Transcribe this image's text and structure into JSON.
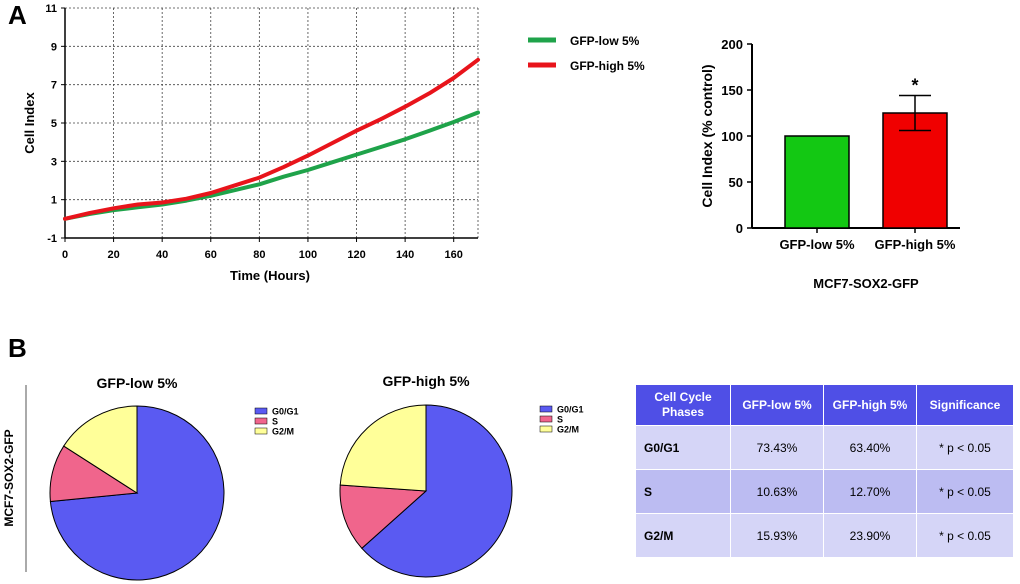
{
  "panels": {
    "a": "A",
    "b": "B"
  },
  "chart_data": [
    {
      "type": "line",
      "xlabel": "Time (Hours)",
      "ylabel": "Cell Index",
      "xlim": [
        0,
        170
      ],
      "ylim": [
        -1,
        11
      ],
      "xticks": [
        "0",
        "20",
        "40",
        "60",
        "80",
        "100",
        "120",
        "140",
        "160"
      ],
      "yticks": [
        "-1",
        "1",
        "3",
        "5",
        "7",
        "9",
        "11"
      ],
      "grid": true,
      "legend_position": "top-right, outside plot",
      "series": [
        {
          "name": "GFP-low 5%",
          "color": "#1fa34a",
          "x": [
            0,
            10,
            20,
            30,
            40,
            50,
            60,
            70,
            80,
            90,
            100,
            110,
            120,
            130,
            140,
            150,
            160,
            170
          ],
          "y": [
            0.0,
            0.25,
            0.45,
            0.6,
            0.75,
            0.95,
            1.2,
            1.5,
            1.8,
            2.2,
            2.55,
            2.95,
            3.35,
            3.75,
            4.15,
            4.6,
            5.05,
            5.55
          ]
        },
        {
          "name": "GFP-high 5%",
          "color": "#e8141b",
          "x": [
            0,
            10,
            20,
            30,
            40,
            50,
            60,
            70,
            80,
            90,
            100,
            110,
            120,
            130,
            140,
            150,
            160,
            170
          ],
          "y": [
            0.0,
            0.3,
            0.55,
            0.75,
            0.85,
            1.05,
            1.35,
            1.75,
            2.15,
            2.7,
            3.3,
            3.95,
            4.6,
            5.2,
            5.85,
            6.55,
            7.35,
            8.3
          ]
        }
      ]
    },
    {
      "type": "bar",
      "categories": [
        "GFP-low 5%",
        "GFP-high 5%"
      ],
      "values": [
        100,
        125
      ],
      "errors": [
        0,
        19
      ],
      "colors": [
        "#13c813",
        "#f00000"
      ],
      "annotations": [
        "",
        "*"
      ],
      "ylabel": "Cell Index (% control)",
      "xlabel": "MCF7-SOX2-GFP",
      "ylim": [
        0,
        200
      ],
      "yticks": [
        "0",
        "50",
        "100",
        "150",
        "200"
      ],
      "grid": false
    },
    {
      "type": "pie",
      "title": "GFP-low 5%",
      "labels": [
        "G0/G1",
        "S",
        "G2/M"
      ],
      "values": [
        73.43,
        10.63,
        15.93
      ],
      "colors": [
        "#5a5af2",
        "#f0658c",
        "#ffff99"
      ],
      "legend_position": "right"
    },
    {
      "type": "pie",
      "title": "GFP-high 5%",
      "labels": [
        "G0/G1",
        "S",
        "G2/M"
      ],
      "values": [
        63.4,
        12.7,
        23.9
      ],
      "colors": [
        "#5a5af2",
        "#f0658c",
        "#ffff99"
      ],
      "legend_position": "right"
    },
    {
      "type": "table",
      "columns": [
        "Cell Cycle Phases",
        "GFP-low 5%",
        "GFP-high 5%",
        "Significance"
      ],
      "rows": [
        [
          "G0/G1",
          "73.43%",
          "63.40%",
          "* p < 0.05"
        ],
        [
          "S",
          "10.63%",
          "12.70%",
          "* p < 0.05"
        ],
        [
          "G2/M",
          "15.93%",
          "23.90%",
          "* p < 0.05"
        ]
      ],
      "header_color": "#4f4fe6"
    }
  ],
  "row_label": "MCF7-SOX2-GFP"
}
